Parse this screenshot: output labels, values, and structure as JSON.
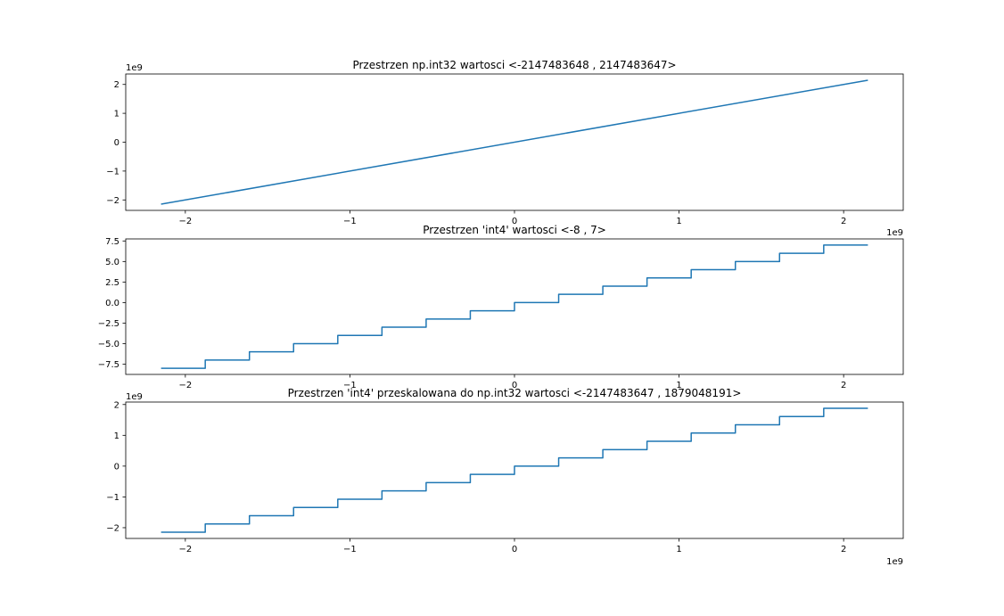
{
  "chart_data": [
    {
      "type": "line",
      "title": "Przestrzen np.int32 wartosci <-2147483648 , 2147483647>",
      "x_offset_label": "",
      "y_offset_label": "1e9",
      "x_ticks": [
        {
          "value": -2000000000.0,
          "label": "−2"
        },
        {
          "value": -1000000000.0,
          "label": "−1"
        },
        {
          "value": 0,
          "label": "0"
        },
        {
          "value": 1000000000.0,
          "label": "1"
        },
        {
          "value": 2000000000.0,
          "label": "2"
        }
      ],
      "y_ticks": [
        {
          "value": -2000000000.0,
          "label": "−2"
        },
        {
          "value": -1000000000.0,
          "label": "−1"
        },
        {
          "value": 0,
          "label": "0"
        },
        {
          "value": 1000000000.0,
          "label": "1"
        },
        {
          "value": 2000000000.0,
          "label": "2"
        }
      ],
      "xlim": [
        -2362232012.7,
        2362232011.7
      ],
      "ylim": [
        -2362232012.7,
        2362232011.7
      ],
      "series": [
        {
          "step": false,
          "x": [
            -2147483648,
            2147483647
          ],
          "y": [
            -2147483648,
            2147483647
          ]
        }
      ]
    },
    {
      "type": "line",
      "title": "Przestrzen 'int4' wartosci <-8 , 7>",
      "x_offset_label": "1e9",
      "y_offset_label": "",
      "x_ticks": [
        {
          "value": -2000000000.0,
          "label": "−2"
        },
        {
          "value": -1000000000.0,
          "label": "−1"
        },
        {
          "value": 0,
          "label": "0"
        },
        {
          "value": 1000000000.0,
          "label": "1"
        },
        {
          "value": 2000000000.0,
          "label": "2"
        }
      ],
      "y_ticks": [
        {
          "value": -7.5,
          "label": "−7.5"
        },
        {
          "value": -5,
          "label": "−5.0"
        },
        {
          "value": -2.5,
          "label": "−2.5"
        },
        {
          "value": 0,
          "label": "0.0"
        },
        {
          "value": 2.5,
          "label": "2.5"
        },
        {
          "value": 5,
          "label": "5.0"
        },
        {
          "value": 7.5,
          "label": "7.5"
        }
      ],
      "xlim": [
        -2362232012.7,
        2362232011.7
      ],
      "ylim": [
        -8.75,
        7.75
      ],
      "series": [
        {
          "step": true,
          "x": [
            -2147483648,
            -1879048192,
            -1610612736,
            -1342177280,
            -1073741824,
            -805306368,
            -536870912,
            -268435456,
            0,
            268435456,
            536870912,
            805306368,
            1073741824,
            1342177280,
            1610612736,
            1879048192,
            2147483647
          ],
          "y": [
            -8,
            -7,
            -6,
            -5,
            -4,
            -3,
            -2,
            -1,
            0,
            1,
            2,
            3,
            4,
            5,
            6,
            7,
            7
          ]
        }
      ]
    },
    {
      "type": "line",
      "title": "Przestrzen 'int4' przeskalowana do np.int32 wartosci <-2147483647 , 1879048191>",
      "x_offset_label": "1e9",
      "y_offset_label": "1e9",
      "x_ticks": [
        {
          "value": -2000000000.0,
          "label": "−2"
        },
        {
          "value": -1000000000.0,
          "label": "−1"
        },
        {
          "value": 0,
          "label": "0"
        },
        {
          "value": 1000000000.0,
          "label": "1"
        },
        {
          "value": 2000000000.0,
          "label": "2"
        }
      ],
      "y_ticks": [
        {
          "value": -2000000000.0,
          "label": "−2"
        },
        {
          "value": -1000000000.0,
          "label": "−1"
        },
        {
          "value": 0,
          "label": "0"
        },
        {
          "value": 1000000000.0,
          "label": "1"
        },
        {
          "value": 2000000000.0,
          "label": "2"
        }
      ],
      "xlim": [
        -2362232012.7,
        2362232011.7
      ],
      "ylim": [
        -2348810239,
        2080374783
      ],
      "series": [
        {
          "step": true,
          "x": [
            -2147483648,
            -1879048192,
            -1610612736,
            -1342177280,
            -1073741824,
            -805306368,
            -536870912,
            -268435456,
            0,
            268435456,
            536870912,
            805306368,
            1073741824,
            1342177280,
            1610612736,
            1879048192,
            2147483647
          ],
          "y": [
            -2147483647,
            -1879048191,
            -1610612735,
            -1342177279,
            -1073741823,
            -805306367,
            -536870911,
            -268435455,
            0,
            268435456,
            536870912,
            805306368,
            1073741824,
            1342177280,
            1610612736,
            1879048191,
            1879048191
          ]
        }
      ]
    }
  ],
  "colors": {
    "line": "#1f77b4",
    "axes": "#000000",
    "background": "#ffffff"
  }
}
